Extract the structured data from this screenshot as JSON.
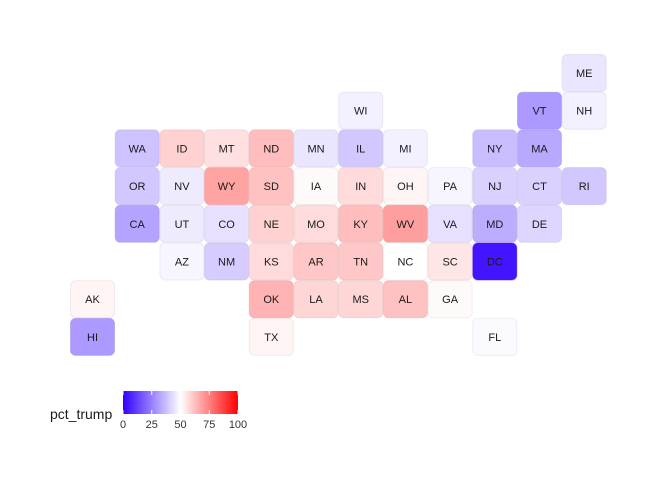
{
  "chart_data": {
    "type": "heatmap",
    "subtype": "us-state-tile-grid-map",
    "title": "",
    "fill_variable": "pct_trump",
    "color_scale": {
      "low": "#3300ff",
      "mid": "#ffffff",
      "high": "#ff0000",
      "domain": [
        0,
        50,
        100
      ],
      "breaks": [
        0,
        25,
        50,
        75,
        100
      ]
    },
    "legend": {
      "title": "pct_trump",
      "placement": "bottom-left",
      "orientation": "horizontal"
    },
    "tiles": [
      {
        "state": "ME",
        "col": 11,
        "row": 0,
        "pct_trump": 45
      },
      {
        "state": "WI",
        "col": 6,
        "row": 1,
        "pct_trump": 47
      },
      {
        "state": "VT",
        "col": 10,
        "row": 1,
        "pct_trump": 30
      },
      {
        "state": "NH",
        "col": 11,
        "row": 1,
        "pct_trump": 47
      },
      {
        "state": "WA",
        "col": 1,
        "row": 2,
        "pct_trump": 38
      },
      {
        "state": "ID",
        "col": 2,
        "row": 2,
        "pct_trump": 59
      },
      {
        "state": "MT",
        "col": 3,
        "row": 2,
        "pct_trump": 56
      },
      {
        "state": "ND",
        "col": 4,
        "row": 2,
        "pct_trump": 63
      },
      {
        "state": "MN",
        "col": 5,
        "row": 2,
        "pct_trump": 45
      },
      {
        "state": "IL",
        "col": 6,
        "row": 2,
        "pct_trump": 39
      },
      {
        "state": "MI",
        "col": 7,
        "row": 2,
        "pct_trump": 47
      },
      {
        "state": "NY",
        "col": 9,
        "row": 2,
        "pct_trump": 37
      },
      {
        "state": "MA",
        "col": 10,
        "row": 2,
        "pct_trump": 33
      },
      {
        "state": "OR",
        "col": 1,
        "row": 3,
        "pct_trump": 39
      },
      {
        "state": "NV",
        "col": 2,
        "row": 3,
        "pct_trump": 46
      },
      {
        "state": "WY",
        "col": 3,
        "row": 3,
        "pct_trump": 68
      },
      {
        "state": "SD",
        "col": 4,
        "row": 3,
        "pct_trump": 62
      },
      {
        "state": "IA",
        "col": 5,
        "row": 3,
        "pct_trump": 51
      },
      {
        "state": "IN",
        "col": 6,
        "row": 3,
        "pct_trump": 57
      },
      {
        "state": "OH",
        "col": 7,
        "row": 3,
        "pct_trump": 52
      },
      {
        "state": "PA",
        "col": 8,
        "row": 3,
        "pct_trump": 48
      },
      {
        "state": "NJ",
        "col": 9,
        "row": 3,
        "pct_trump": 41
      },
      {
        "state": "CT",
        "col": 10,
        "row": 3,
        "pct_trump": 41
      },
      {
        "state": "RI",
        "col": 11,
        "row": 3,
        "pct_trump": 39
      },
      {
        "state": "CA",
        "col": 1,
        "row": 4,
        "pct_trump": 32
      },
      {
        "state": "UT",
        "col": 2,
        "row": 4,
        "pct_trump": 46
      },
      {
        "state": "CO",
        "col": 3,
        "row": 4,
        "pct_trump": 44
      },
      {
        "state": "NE",
        "col": 4,
        "row": 4,
        "pct_trump": 59
      },
      {
        "state": "MO",
        "col": 5,
        "row": 4,
        "pct_trump": 57
      },
      {
        "state": "KY",
        "col": 6,
        "row": 4,
        "pct_trump": 63
      },
      {
        "state": "WV",
        "col": 7,
        "row": 4,
        "pct_trump": 69
      },
      {
        "state": "VA",
        "col": 8,
        "row": 4,
        "pct_trump": 44
      },
      {
        "state": "MD",
        "col": 9,
        "row": 4,
        "pct_trump": 34
      },
      {
        "state": "DE",
        "col": 10,
        "row": 4,
        "pct_trump": 42
      },
      {
        "state": "AZ",
        "col": 2,
        "row": 5,
        "pct_trump": 48
      },
      {
        "state": "NM",
        "col": 3,
        "row": 5,
        "pct_trump": 40
      },
      {
        "state": "KS",
        "col": 4,
        "row": 5,
        "pct_trump": 57
      },
      {
        "state": "AR",
        "col": 5,
        "row": 5,
        "pct_trump": 61
      },
      {
        "state": "TN",
        "col": 6,
        "row": 5,
        "pct_trump": 61
      },
      {
        "state": "NC",
        "col": 7,
        "row": 5,
        "pct_trump": 50
      },
      {
        "state": "SC",
        "col": 8,
        "row": 5,
        "pct_trump": 55
      },
      {
        "state": "DC",
        "col": 9,
        "row": 5,
        "pct_trump": 4
      },
      {
        "state": "AK",
        "col": 0,
        "row": 6,
        "pct_trump": 52
      },
      {
        "state": "OK",
        "col": 4,
        "row": 6,
        "pct_trump": 65
      },
      {
        "state": "LA",
        "col": 5,
        "row": 6,
        "pct_trump": 58
      },
      {
        "state": "MS",
        "col": 6,
        "row": 6,
        "pct_trump": 58
      },
      {
        "state": "AL",
        "col": 7,
        "row": 6,
        "pct_trump": 62
      },
      {
        "state": "GA",
        "col": 8,
        "row": 6,
        "pct_trump": 51
      },
      {
        "state": "HI",
        "col": 0,
        "row": 7,
        "pct_trump": 30
      },
      {
        "state": "TX",
        "col": 4,
        "row": 7,
        "pct_trump": 52
      },
      {
        "state": "FL",
        "col": 9,
        "row": 7,
        "pct_trump": 49
      }
    ]
  }
}
